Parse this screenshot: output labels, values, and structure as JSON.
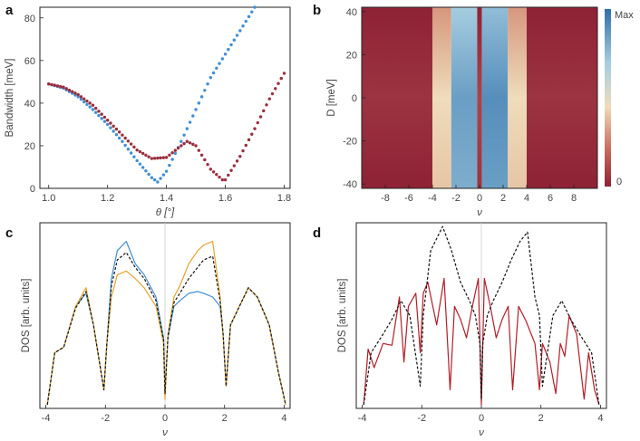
{
  "panel_labels": {
    "a": "a",
    "b": "b",
    "c": "c",
    "d": "d"
  },
  "colors": {
    "blue_series": "#3f8ed3",
    "red_series": "#9b2d3d",
    "orange_series": "#e6a22d",
    "dashed_series": "#111111",
    "crimson_series": "#b31d28"
  },
  "chart_data": [
    {
      "panel": "a",
      "type": "scatter",
      "xlabel": "θ [°]",
      "ylabel": "Bandwidth [meV]",
      "xlim": [
        0.97,
        1.82
      ],
      "ylim": [
        0,
        85
      ],
      "xticks": [
        "1.0",
        "1.2",
        "1.4",
        "1.6",
        "1.8"
      ],
      "yticks": [
        "0",
        "20",
        "40",
        "60",
        "80"
      ],
      "series": [
        {
          "name": "blue",
          "x": [
            1.0,
            1.05,
            1.1,
            1.15,
            1.2,
            1.25,
            1.3,
            1.35,
            1.37,
            1.4,
            1.45,
            1.5,
            1.55,
            1.6,
            1.65,
            1.7
          ],
          "y": [
            49,
            47,
            43,
            37,
            30,
            22,
            13,
            5,
            3,
            8,
            22,
            37,
            52,
            63,
            74,
            85
          ]
        },
        {
          "name": "red",
          "x": [
            1.0,
            1.05,
            1.1,
            1.15,
            1.2,
            1.25,
            1.3,
            1.35,
            1.4,
            1.45,
            1.47,
            1.5,
            1.55,
            1.59,
            1.6,
            1.65,
            1.7,
            1.75,
            1.8
          ],
          "y": [
            49,
            47.5,
            44,
            39,
            32,
            25,
            18,
            14,
            14.5,
            20,
            22,
            20,
            9,
            4,
            4,
            15,
            28,
            42,
            54
          ]
        }
      ]
    },
    {
      "panel": "b",
      "type": "heatmap",
      "xlabel": "ν",
      "ylabel": "D [meV]",
      "xlim": [
        -10,
        10
      ],
      "ylim": [
        -42,
        42
      ],
      "xticks": [
        "-8",
        "-6",
        "-4",
        "-2",
        "0",
        "2",
        "4",
        "6",
        "8"
      ],
      "yticks": [
        "-40",
        "-20",
        "0",
        "20",
        "40"
      ],
      "colorbar": {
        "max_label": "Max",
        "min_label": "0"
      },
      "columns": [
        {
          "x": [
            -10,
            -4
          ],
          "level": 0.05
        },
        {
          "x": [
            -4,
            -2.4
          ],
          "level": 0.45
        },
        {
          "x": [
            -2.4,
            -0.2
          ],
          "level": 0.85
        },
        {
          "x": [
            -0.2,
            0.2
          ],
          "level": 0.1
        },
        {
          "x": [
            0.2,
            2.4
          ],
          "level": 0.9
        },
        {
          "x": [
            2.4,
            4
          ],
          "level": 0.45
        },
        {
          "x": [
            4,
            10
          ],
          "level": 0.05
        }
      ]
    },
    {
      "panel": "c",
      "type": "line",
      "xlabel": "ν",
      "ylabel": "DOS [arb. units]",
      "xlim": [
        -4.2,
        4.2
      ],
      "ylim": [
        0,
        1
      ],
      "xticks": [
        "-4",
        "-2",
        "0",
        "2",
        "4"
      ],
      "series": [
        {
          "name": "blue",
          "x": [
            -3.95,
            -3.7,
            -3.4,
            -3.0,
            -2.65,
            -2.4,
            -2.05,
            -1.95,
            -1.8,
            -1.6,
            -1.3,
            -1.0,
            -0.7,
            -0.3,
            -0.05,
            0,
            0.1,
            0.3,
            0.5,
            0.8,
            1.1,
            1.3,
            1.6,
            1.85,
            1.95,
            2.05,
            2.2,
            2.5,
            2.8,
            3.1,
            3.5,
            3.8,
            4.05
          ],
          "y": [
            0.02,
            0.3,
            0.33,
            0.55,
            0.62,
            0.45,
            0.1,
            0.35,
            0.7,
            0.85,
            0.9,
            0.78,
            0.72,
            0.6,
            0.38,
            0.1,
            0.38,
            0.55,
            0.58,
            0.62,
            0.63,
            0.62,
            0.6,
            0.55,
            0.4,
            0.12,
            0.45,
            0.55,
            0.65,
            0.6,
            0.45,
            0.2,
            0.02
          ]
        },
        {
          "name": "orange",
          "x": [
            -3.95,
            -3.7,
            -3.4,
            -3.0,
            -2.65,
            -2.4,
            -2.05,
            -1.95,
            -1.8,
            -1.6,
            -1.3,
            -1.0,
            -0.7,
            -0.3,
            -0.05,
            0,
            0.1,
            0.3,
            0.5,
            0.8,
            1.1,
            1.3,
            1.6,
            1.85,
            1.95,
            2.05,
            2.2,
            2.5,
            2.8,
            3.1,
            3.5,
            3.8,
            4.05
          ],
          "y": [
            0.02,
            0.3,
            0.33,
            0.55,
            0.65,
            0.45,
            0.1,
            0.35,
            0.6,
            0.72,
            0.74,
            0.7,
            0.65,
            0.55,
            0.35,
            0.05,
            0.4,
            0.6,
            0.66,
            0.78,
            0.85,
            0.88,
            0.9,
            0.6,
            0.4,
            0.12,
            0.45,
            0.55,
            0.65,
            0.6,
            0.45,
            0.2,
            0.02
          ]
        },
        {
          "name": "dashed",
          "x": [
            -3.95,
            -3.7,
            -3.4,
            -3.0,
            -2.65,
            -2.4,
            -2.05,
            -1.95,
            -1.8,
            -1.6,
            -1.3,
            -1.0,
            -0.7,
            -0.3,
            -0.05,
            0,
            0.1,
            0.3,
            0.5,
            0.8,
            1.1,
            1.3,
            1.6,
            1.85,
            1.95,
            2.05,
            2.2,
            2.5,
            2.8,
            3.1,
            3.5,
            3.8,
            4.05
          ],
          "y": [
            0.02,
            0.3,
            0.33,
            0.54,
            0.63,
            0.45,
            0.1,
            0.35,
            0.66,
            0.8,
            0.84,
            0.76,
            0.7,
            0.58,
            0.37,
            0.08,
            0.39,
            0.57,
            0.62,
            0.7,
            0.76,
            0.8,
            0.82,
            0.58,
            0.4,
            0.12,
            0.45,
            0.55,
            0.65,
            0.6,
            0.45,
            0.2,
            0.02
          ]
        }
      ]
    },
    {
      "panel": "d",
      "type": "line",
      "xlabel": "ν",
      "ylabel": "DOS [arb. units]",
      "xlim": [
        -4.2,
        4.2
      ],
      "ylim": [
        0,
        1
      ],
      "xticks": [
        "-4",
        "-2",
        "0",
        "2",
        "4"
      ],
      "series": [
        {
          "name": "crimson",
          "x": [
            -3.95,
            -3.8,
            -3.6,
            -3.3,
            -3.0,
            -2.75,
            -2.6,
            -2.45,
            -2.2,
            -2.05,
            -1.95,
            -1.8,
            -1.5,
            -1.25,
            -1.05,
            -0.9,
            -0.7,
            -0.5,
            -0.3,
            -0.1,
            0,
            0.1,
            0.3,
            0.5,
            0.7,
            0.9,
            1.05,
            1.25,
            1.5,
            1.8,
            1.95,
            2.05,
            2.3,
            2.5,
            2.65,
            2.8,
            2.95,
            3.2,
            3.45,
            3.6,
            3.8,
            3.95
          ],
          "y": [
            0.02,
            0.32,
            0.22,
            0.35,
            0.34,
            0.6,
            0.25,
            0.55,
            0.62,
            0.3,
            0.62,
            0.68,
            0.45,
            0.7,
            0.1,
            0.55,
            0.48,
            0.38,
            0.55,
            0.7,
            0.02,
            0.7,
            0.55,
            0.38,
            0.48,
            0.55,
            0.1,
            0.55,
            0.47,
            0.35,
            0.1,
            0.35,
            0.25,
            0.08,
            0.35,
            0.28,
            0.5,
            0.4,
            0.05,
            0.3,
            0.1,
            0.02
          ]
        },
        {
          "name": "dashed",
          "x": [
            -3.95,
            -3.7,
            -3.3,
            -3.0,
            -2.7,
            -2.4,
            -2.05,
            -1.95,
            -1.7,
            -1.3,
            -1.0,
            -0.7,
            -0.4,
            -0.2,
            -0.05,
            0,
            0.05,
            0.2,
            0.4,
            0.7,
            1.0,
            1.3,
            1.55,
            1.8,
            1.95,
            2.05,
            2.4,
            2.7,
            3.0,
            3.3,
            3.7,
            3.95
          ],
          "y": [
            0.02,
            0.3,
            0.4,
            0.48,
            0.58,
            0.5,
            0.12,
            0.5,
            0.85,
            0.98,
            0.85,
            0.68,
            0.58,
            0.5,
            0.35,
            0.05,
            0.35,
            0.5,
            0.58,
            0.68,
            0.8,
            0.9,
            0.95,
            0.6,
            0.5,
            0.12,
            0.5,
            0.58,
            0.48,
            0.4,
            0.3,
            0.02
          ]
        }
      ]
    }
  ]
}
